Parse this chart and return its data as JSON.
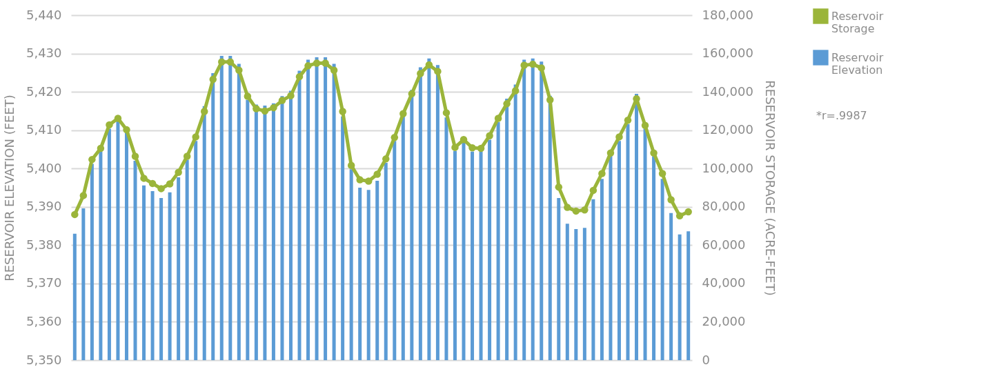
{
  "chart_data": {
    "type": "bar",
    "categories": [
      null,
      null,
      null,
      null,
      null,
      null,
      null,
      null,
      null,
      null,
      null,
      null,
      null,
      null,
      null,
      null,
      null,
      null,
      null,
      null,
      null,
      null,
      null,
      null,
      null,
      null,
      null,
      null,
      null,
      null,
      null,
      null,
      null,
      null,
      null,
      null,
      null,
      null,
      null,
      null,
      null,
      null,
      null,
      null,
      null,
      null,
      null,
      null,
      null,
      null,
      null,
      null,
      null,
      null,
      null,
      null,
      null,
      null,
      null,
      null,
      null,
      null,
      null,
      null,
      null,
      null,
      null,
      null,
      null,
      null,
      null,
      null
    ],
    "ylabel": "RESERVOIR ELEVATION (FEET)",
    "y2label": "RESERVOIR STORAGE (ACRE-FEET)",
    "ylim": [
      5350,
      5440
    ],
    "yticks": [
      {
        "value": 5350,
        "label": "5,350"
      },
      {
        "value": 5360,
        "label": "5,360"
      },
      {
        "value": 5370,
        "label": "5,370"
      },
      {
        "value": 5380,
        "label": "5,380"
      },
      {
        "value": 5390,
        "label": "5,390"
      },
      {
        "value": 5400,
        "label": "5,400"
      },
      {
        "value": 5410,
        "label": "5,410"
      },
      {
        "value": 5420,
        "label": "5,420"
      },
      {
        "value": 5430,
        "label": "5,430"
      },
      {
        "value": 5440,
        "label": "5,440"
      }
    ],
    "y2lim": [
      0,
      180000
    ],
    "y2ticks": [
      0,
      {
        "value": 20000,
        "label": "20,000"
      },
      {
        "value": 40000,
        "label": "40,000"
      },
      {
        "value": 60000,
        "label": "60,000"
      },
      {
        "value": 80000,
        "label": "80,000"
      },
      {
        "value": 100000,
        "label": "100,000"
      },
      {
        "value": 120000,
        "label": "120,000"
      },
      {
        "value": 140000,
        "label": "140,000"
      },
      {
        "value": 160000,
        "label": "160,000"
      },
      {
        "value": 180000,
        "label": "180,000"
      }
    ],
    "grid": "y",
    "legend": "right",
    "marker": "circle",
    "line_style": "solid",
    "annotations": [
      "*r=.9987"
    ],
    "series": [
      {
        "name": "Reservoir Storage",
        "type": "line",
        "axis": "y2",
        "color": "#9bb53a",
        "values": [
          76000,
          85900,
          104700,
          110500,
          122800,
          126200,
          120200,
          106400,
          94900,
          92200,
          89500,
          92000,
          98000,
          106400,
          116500,
          129800,
          146500,
          155600,
          155600,
          151300,
          137700,
          131200,
          130000,
          131700,
          135500,
          138000,
          147900,
          153600,
          155000,
          155000,
          151300,
          129800,
          101600,
          94100,
          93400,
          97000,
          105000,
          116200,
          128600,
          139000,
          149600,
          154100,
          150700,
          129100,
          111000,
          115100,
          110800,
          110500,
          117100,
          126200,
          133800,
          140600,
          153900,
          154400,
          152500,
          135800,
          90300,
          79700,
          77800,
          78400,
          88600,
          97400,
          108100,
          116500,
          125200,
          136400,
          122500,
          108100,
          97400,
          83700,
          75300,
          77400
        ]
      },
      {
        "name": "Reservoir Elevation",
        "color": "#5b9bd5",
        "values": [
          5383.0,
          5389.6,
          5401.2,
          5404.4,
          5410.4,
          5412.4,
          5409.3,
          5402.0,
          5395.6,
          5394.1,
          5392.3,
          5393.8,
          5397.7,
          5402.3,
          5407.2,
          5416.3,
          5424.9,
          5429.4,
          5429.4,
          5427.3,
          5417.9,
          5416.7,
          5416.4,
          5417.0,
          5418.9,
          5420.3,
          5425.5,
          5428.4,
          5429.0,
          5429.0,
          5427.3,
          5413.6,
          5399.8,
          5395.0,
          5394.4,
          5396.8,
          5401.5,
          5407.2,
          5413.9,
          5420.5,
          5426.4,
          5428.7,
          5427.0,
          5413.3,
          5404.6,
          5406.8,
          5404.4,
          5404.4,
          5407.5,
          5412.1,
          5418.2,
          5421.9,
          5428.4,
          5428.7,
          5427.9,
          5419.0,
          5392.3,
          5385.6,
          5384.2,
          5384.5,
          5392.0,
          5397.3,
          5403.5,
          5407.2,
          5411.6,
          5419.5,
          5410.4,
          5403.2,
          5397.3,
          5388.4,
          5382.8,
          5383.6
        ]
      }
    ]
  }
}
